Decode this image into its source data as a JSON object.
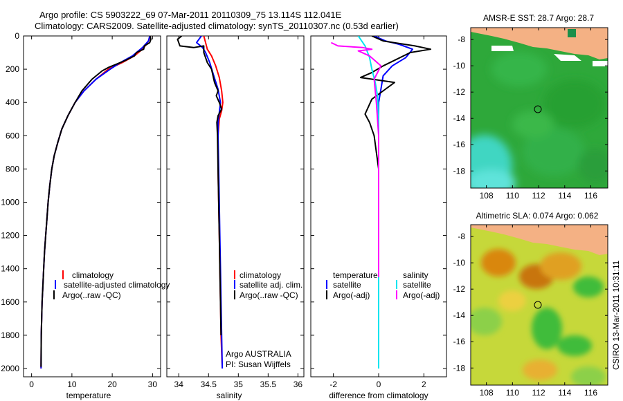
{
  "figure": {
    "title_line1": "Argo profile: CS 5903222_69 07-Mar-2011 20110309_75 13.114S 112.041E",
    "title_line2": "Climatology: CARS2009. Satellite-adjusted climatology: synTS_20110307.nc (0.53d earlier)",
    "side_label": "CSIRO 13-Mar-2011 10:31:11",
    "credit_line1": "Argo AUSTRALIA",
    "credit_line2": "PI: Susan Wijffels"
  },
  "colors": {
    "climatology": "#ff0000",
    "satellite": "#0000ff",
    "argo": "#000000",
    "cyan": "#00e5f0",
    "magenta": "#ff00ff",
    "land": "#f4b184"
  },
  "chart_data": [
    {
      "type": "line",
      "xlabel": "temperature",
      "xlim": [
        -2,
        32
      ],
      "ylim": [
        2050,
        0
      ],
      "y_reversed": true,
      "xticks": [
        0,
        10,
        20,
        30
      ],
      "yticks": [
        0,
        200,
        400,
        600,
        800,
        1000,
        1200,
        1400,
        1600,
        1800,
        2000
      ],
      "legend": [
        "climatology",
        "satellite-adjusted climatology",
        "Argo(..raw -QC)"
      ],
      "series": [
        {
          "name": "climatology",
          "color": "#ff0000",
          "x": [
            29.5,
            29.2,
            28.5,
            27.5,
            25.5,
            22.5,
            19.0,
            16.0,
            13.0,
            10.8,
            9.0,
            7.5,
            6.5,
            5.6,
            5.0,
            4.5,
            4.1,
            3.8,
            3.5,
            3.2,
            3.0,
            2.8,
            2.6,
            2.5,
            2.4,
            2.35
          ],
          "y": [
            0,
            20,
            50,
            80,
            120,
            160,
            200,
            260,
            330,
            400,
            480,
            560,
            640,
            720,
            800,
            900,
            1000,
            1100,
            1200,
            1300,
            1400,
            1500,
            1600,
            1700,
            1800,
            2000
          ]
        },
        {
          "name": "satellite-adjusted climatology",
          "color": "#0000ff",
          "x": [
            29.3,
            29.0,
            27.5,
            25.0,
            22.0,
            19.5,
            16.0,
            13.0,
            10.8,
            9.0,
            7.5,
            6.5,
            5.6,
            5.0,
            4.5,
            4.1,
            3.8,
            3.5,
            3.2,
            3.0,
            2.8,
            2.6,
            2.5,
            2.4,
            2.35
          ],
          "y": [
            0,
            30,
            70,
            120,
            160,
            200,
            260,
            330,
            400,
            480,
            560,
            640,
            720,
            800,
            900,
            1000,
            1100,
            1200,
            1300,
            1400,
            1500,
            1600,
            1700,
            1800,
            2000
          ]
        },
        {
          "name": "Argo(..raw -QC)",
          "color": "#000000",
          "x": [
            29.4,
            29.6,
            29.3,
            28.0,
            27.8,
            26.0,
            25.5,
            23.0,
            21.0,
            19.0,
            17.5,
            15.0,
            12.5,
            10.8,
            9.0,
            7.5,
            6.5,
            5.6,
            5.0,
            4.5,
            4.1,
            3.8,
            3.5,
            3.2,
            3.0,
            2.8,
            2.6,
            2.5,
            2.4,
            2.35
          ],
          "y": [
            0,
            20,
            40,
            60,
            80,
            100,
            120,
            150,
            170,
            190,
            210,
            260,
            330,
            400,
            480,
            560,
            640,
            720,
            800,
            900,
            1000,
            1100,
            1200,
            1300,
            1400,
            1500,
            1600,
            1700,
            1800,
            1990
          ]
        }
      ]
    },
    {
      "type": "line",
      "xlabel": "salinity",
      "xlim": [
        33.8,
        36.1
      ],
      "ylim": [
        2050,
        0
      ],
      "y_reversed": true,
      "xticks": [
        34,
        34.5,
        35,
        35.5,
        36
      ],
      "legend": [
        "climatology",
        "satellite adj. clim.",
        "Argo(..raw -QC)"
      ],
      "series": [
        {
          "name": "climatology",
          "color": "#ff0000",
          "x": [
            34.42,
            34.45,
            34.48,
            34.55,
            34.62,
            34.68,
            34.72,
            34.74,
            34.72,
            34.68,
            34.66,
            34.66,
            34.67,
            34.68,
            34.69,
            34.7,
            34.71,
            34.72,
            34.73
          ],
          "y": [
            0,
            40,
            80,
            120,
            180,
            250,
            330,
            400,
            450,
            500,
            600,
            800,
            1000,
            1200,
            1400,
            1600,
            1800,
            1900,
            2000
          ]
        },
        {
          "name": "satellite adj. clim.",
          "color": "#0000ff",
          "x": [
            34.38,
            34.3,
            34.4,
            34.45,
            34.52,
            34.58,
            34.66,
            34.7,
            34.68,
            34.66,
            34.66,
            34.67,
            34.68,
            34.69,
            34.7,
            34.71,
            34.72,
            34.73
          ],
          "y": [
            0,
            40,
            70,
            100,
            160,
            230,
            320,
            400,
            460,
            520,
            600,
            800,
            1000,
            1200,
            1400,
            1600,
            1800,
            2000
          ]
        },
        {
          "name": "Argo(..raw -QC)",
          "color": "#000000",
          "x": [
            34.05,
            33.98,
            34.02,
            34.25,
            34.42,
            34.42,
            34.48,
            34.55,
            34.6,
            34.66,
            34.63,
            34.68,
            34.72,
            34.66,
            34.64,
            34.65,
            34.66,
            34.67,
            34.68,
            34.69,
            34.7,
            34.71
          ],
          "y": [
            0,
            20,
            60,
            70,
            60,
            100,
            160,
            200,
            280,
            330,
            360,
            400,
            440,
            480,
            520,
            600,
            800,
            1000,
            1200,
            1400,
            1600,
            1800
          ]
        }
      ]
    },
    {
      "type": "line",
      "xlabel": "difference from climatology",
      "xlim": [
        -3,
        3
      ],
      "ylim": [
        2050,
        0
      ],
      "y_reversed": true,
      "xticks": [
        -2,
        0,
        2
      ],
      "legend": [
        {
          "group": "temperature",
          "items": [
            "satellite",
            "Argo(-adj)"
          ]
        },
        {
          "group": "salinity",
          "items": [
            "satellite",
            "Argo(-adj)"
          ]
        }
      ],
      "series": [
        {
          "name": "temperature satellite",
          "color": "#0000ff",
          "x": [
            -0.2,
            0.3,
            0.9,
            1.5,
            1.2,
            0.6,
            0.2,
            0.1,
            0.0,
            0.0,
            0.0,
            0.0,
            0.0
          ],
          "y": [
            0,
            30,
            50,
            80,
            130,
            180,
            240,
            320,
            400,
            600,
            1000,
            1400,
            2000
          ]
        },
        {
          "name": "temperature Argo(-adj)",
          "color": "#000000",
          "x": [
            -0.3,
            0.2,
            1.6,
            2.3,
            1.4,
            0.8,
            0.2,
            -0.3,
            -0.8,
            0.7,
            0.3,
            -0.3,
            -0.6,
            -0.4,
            -0.2,
            -0.1,
            0.0,
            0.0,
            0.0,
            0.0,
            0.0
          ],
          "y": [
            0,
            30,
            60,
            80,
            100,
            140,
            180,
            220,
            250,
            280,
            320,
            380,
            470,
            520,
            600,
            700,
            800,
            1000,
            1200,
            1400,
            1500
          ]
        },
        {
          "name": "salinity satellite",
          "color": "#00e5f0",
          "x": [
            -0.9,
            -0.6,
            -0.4,
            -0.3,
            -0.15,
            -0.05,
            0.0,
            0.0,
            0.0,
            0.0,
            0.0,
            0.0
          ],
          "y": [
            0,
            60,
            130,
            200,
            280,
            360,
            500,
            800,
            1100,
            1400,
            1700,
            2000
          ]
        },
        {
          "name": "salinity Argo(-adj)",
          "color": "#ff00ff",
          "x": [
            -2.1,
            -1.8,
            -0.7,
            -0.3,
            -0.9,
            -0.4,
            0.1,
            -0.2,
            -0.1,
            0.0,
            0.0,
            0.0
          ],
          "y": [
            40,
            60,
            70,
            80,
            90,
            120,
            180,
            260,
            400,
            600,
            1000,
            1450
          ]
        }
      ]
    }
  ],
  "maps": [
    {
      "title": "AMSR-E SST: 28.7 Argo: 28.7",
      "xticks": [
        "108",
        "110",
        "112",
        "114",
        "116"
      ],
      "yticks": [
        "-8",
        "-10",
        "-12",
        "-14",
        "-16",
        "-18"
      ],
      "marker": {
        "lon": 112.041,
        "lat": -13.114
      }
    },
    {
      "title": "Altimetric SLA: 0.074 Argo: 0.062",
      "xticks": [
        "108",
        "110",
        "112",
        "114",
        "116"
      ],
      "yticks": [
        "-8",
        "-10",
        "-12",
        "-14",
        "-16",
        "-18"
      ],
      "marker": {
        "lon": 112.041,
        "lat": -13.114
      }
    }
  ]
}
